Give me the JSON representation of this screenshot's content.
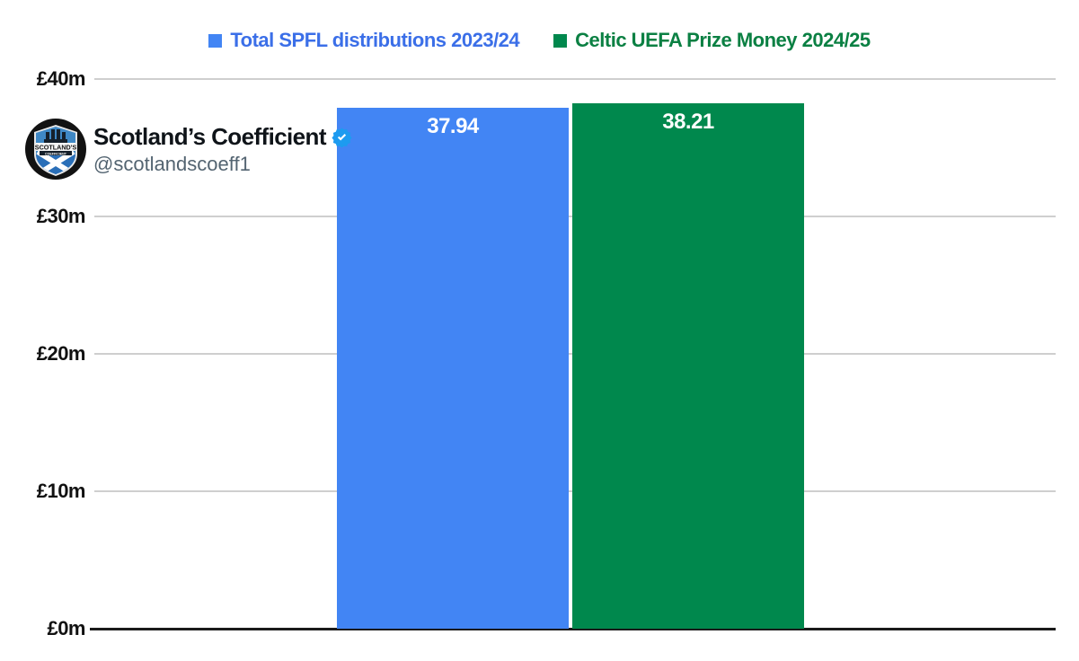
{
  "legend": [
    {
      "label": "Total SPFL distributions 2023/24",
      "text_color": "#3b6fe8",
      "marker_color": "#4285f4"
    },
    {
      "label": "Celtic UEFA Prize Money 2024/25",
      "text_color": "#0b8043",
      "marker_color": "#00884d"
    }
  ],
  "profile": {
    "name": "Scotland’s Coefficient",
    "handle": "@scotlandscoeff1",
    "verified_badge": "verified-checkmark",
    "verified_color": "#1d9bf0",
    "logo_line1": "SCOTLAND'S",
    "logo_line2": "COEFFICIENT"
  },
  "chart_data": {
    "type": "bar",
    "categories": [
      "Total SPFL distributions 2023/24",
      "Celtic UEFA Prize Money 2024/25"
    ],
    "values": [
      37.94,
      38.21
    ],
    "value_labels": [
      "37.94",
      "38.21"
    ],
    "bar_colors": [
      "#4285f4",
      "#00884d"
    ],
    "title": "",
    "xlabel": "",
    "ylabel": "",
    "ytick_labels": [
      "£40m",
      "£30m",
      "£20m",
      "£10m",
      "£0m"
    ],
    "ytick_values": [
      40,
      30,
      20,
      10,
      0
    ],
    "ylim": [
      0,
      40
    ],
    "grid": true,
    "gridline_color": "#cfcfcf",
    "axis_color": "#1a1a1a",
    "legend_position": "top",
    "value_label_color": "#ffffff"
  }
}
